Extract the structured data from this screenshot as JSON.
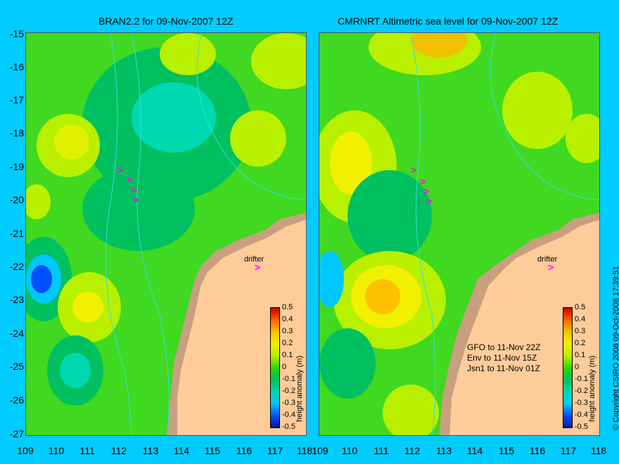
{
  "titles": {
    "left": "BRAN2.2 for 09-Nov-2007 12Z",
    "right": "CMRNRT Altimetric sea level  for 09-Nov-2007 12Z"
  },
  "y_ticks": [
    "-15",
    "-16",
    "-17",
    "-18",
    "-19",
    "-20",
    "-21",
    "-22",
    "-23",
    "-24",
    "-25",
    "-26",
    "-27"
  ],
  "x_ticks": [
    "109",
    "110",
    "111",
    "112",
    "113",
    "114",
    "115",
    "116",
    "117",
    "118"
  ],
  "colorbar": {
    "ticks": [
      "0.5",
      "0.4",
      "0.3",
      "0.2",
      "0.1",
      "0",
      "-0.1",
      "-0.2",
      "-0.3",
      "-0.4",
      "-0.5"
    ],
    "label": "height anomaly (m)",
    "colors": [
      "#001a99",
      "#0050ff",
      "#00c8ff",
      "#00d8b0",
      "#00c060",
      "#30d800",
      "#b8f000",
      "#f0f000",
      "#ffc000",
      "#ff6000",
      "#c80000"
    ]
  },
  "drifter_label": "drifter",
  "satellite_notes": {
    "gfo": "GFO to 11-Nov 22Z",
    "env": "Env to 11-Nov 15Z",
    "jsn1": "Jsn1 to 11-Nov 01Z"
  },
  "copyright": "© Copyright CSIRO 2008    09-Oct-2008 17:39:51",
  "colors": {
    "background": "#00ccff",
    "land": "#ffcc99",
    "shelf_land": "#c8a080",
    "drifter_marker": "#ff00ff"
  }
}
